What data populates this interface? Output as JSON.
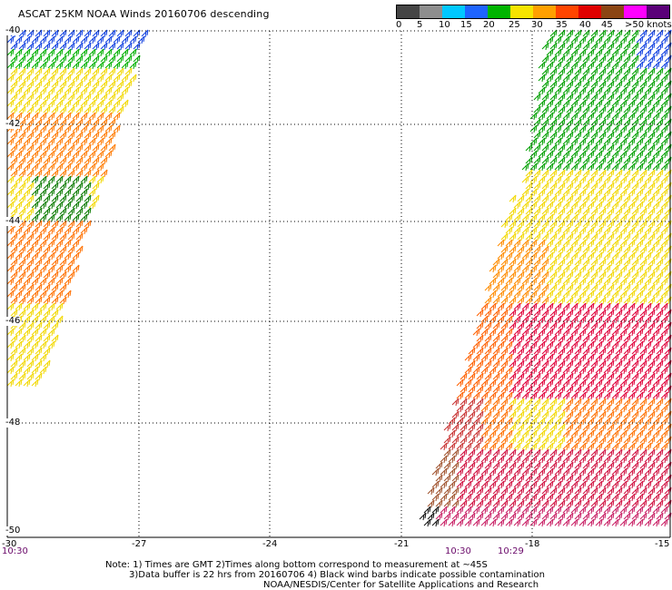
{
  "header": {
    "title": "ASCAT 25KM NOAA Winds 20160706 descending"
  },
  "legend": {
    "ticks": [
      "0",
      "5",
      "10",
      "15",
      "20",
      "25",
      "30",
      "35",
      "40",
      "45",
      ">50 knots"
    ],
    "colors": [
      "#555555",
      "#8f8f8f",
      "#00c8ff",
      "#0064ff",
      "#0000c8",
      "#00b400",
      "#006400",
      "#ffff00",
      "#ffc800",
      "#ff8c00",
      "#ff5000",
      "#ff0000",
      "#b40000",
      "#8b4513",
      "#c85a00",
      "#ff00ff",
      "#b400b4",
      "#640064"
    ]
  },
  "axes": {
    "lon_labels": [
      "-30",
      "-27",
      "-24",
      "-21",
      "-18",
      "-15"
    ],
    "lat_labels": [
      "-40",
      "-42",
      "-44",
      "-46",
      "-48",
      "-50"
    ]
  },
  "times": {
    "left": "10:30",
    "right_a": "10:30",
    "right_b": "10:29"
  },
  "notes": {
    "line1": "Note: 1) Times are GMT 2)Times along bottom correspond to measurement at ~45S",
    "line2": "3)Data buffer is 22 hrs from 20160706 4) Black wind barbs indicate possible contamination",
    "line3": "NOAA/NESDIS/Center for Satellite Applications and Research"
  }
}
